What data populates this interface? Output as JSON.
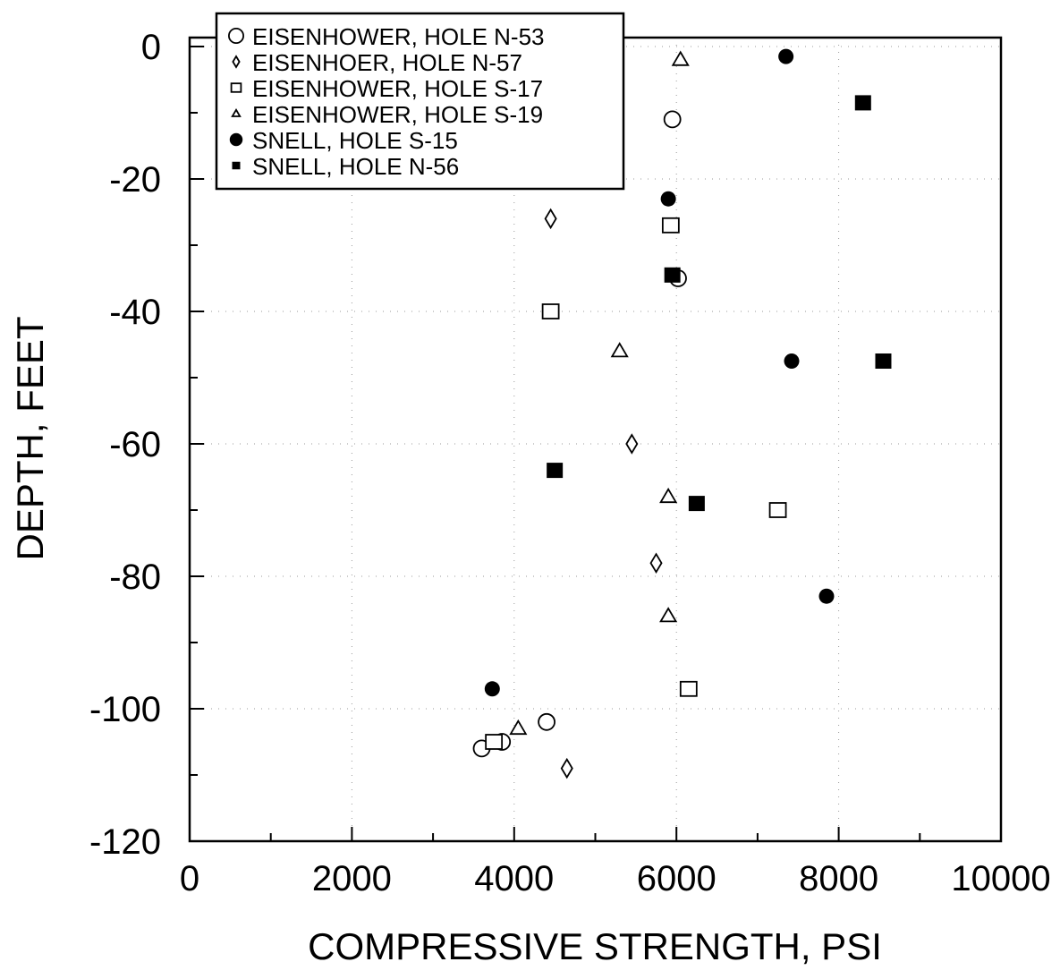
{
  "chart_data": {
    "type": "scatter",
    "xlabel": "COMPRESSIVE STRENGTH, PSI",
    "ylabel": "DEPTH, FEET",
    "xlim": [
      0,
      10000
    ],
    "ylim": [
      -120,
      0
    ],
    "xticks": [
      0,
      2000,
      4000,
      6000,
      8000,
      10000
    ],
    "yticks": [
      0,
      -20,
      -40,
      -60,
      -80,
      -100,
      -120
    ],
    "grid": "dotted",
    "legend_position": "top-left",
    "series": [
      {
        "name": "EISENHOWER, HOLE N-53",
        "marker": "circle-open",
        "points": [
          {
            "x": 5950,
            "y": -11
          },
          {
            "x": 6020,
            "y": -35
          },
          {
            "x": 4400,
            "y": -102
          },
          {
            "x": 3600,
            "y": -106
          },
          {
            "x": 3850,
            "y": -105
          }
        ]
      },
      {
        "name": "EISENHOER, HOLE N-57",
        "marker": "diamond-open",
        "points": [
          {
            "x": 4450,
            "y": -26
          },
          {
            "x": 5450,
            "y": -60
          },
          {
            "x": 5750,
            "y": -78
          },
          {
            "x": 4650,
            "y": -109
          }
        ]
      },
      {
        "name": "EISENHOWER, HOLE S-17",
        "marker": "square-open",
        "points": [
          {
            "x": 5930,
            "y": -27
          },
          {
            "x": 4450,
            "y": -40
          },
          {
            "x": 7250,
            "y": -70
          },
          {
            "x": 6150,
            "y": -97
          },
          {
            "x": 3750,
            "y": -105
          }
        ]
      },
      {
        "name": "EISENHOWER, HOLE S-19",
        "marker": "triangle-open",
        "points": [
          {
            "x": 6050,
            "y": -2
          },
          {
            "x": 5300,
            "y": -46
          },
          {
            "x": 5900,
            "y": -68
          },
          {
            "x": 5900,
            "y": -86
          },
          {
            "x": 4050,
            "y": -103
          }
        ]
      },
      {
        "name": "SNELL, HOLE S-15",
        "marker": "circle-filled",
        "points": [
          {
            "x": 7350,
            "y": -1.5
          },
          {
            "x": 5900,
            "y": -23
          },
          {
            "x": 7420,
            "y": -47.5
          },
          {
            "x": 7850,
            "y": -83
          },
          {
            "x": 3730,
            "y": -97
          }
        ]
      },
      {
        "name": "SNELL, HOLE N-56",
        "marker": "square-filled",
        "points": [
          {
            "x": 8300,
            "y": -8.5
          },
          {
            "x": 5950,
            "y": -34.5
          },
          {
            "x": 8550,
            "y": -47.5
          },
          {
            "x": 4500,
            "y": -64
          },
          {
            "x": 6250,
            "y": -69
          }
        ]
      }
    ]
  }
}
